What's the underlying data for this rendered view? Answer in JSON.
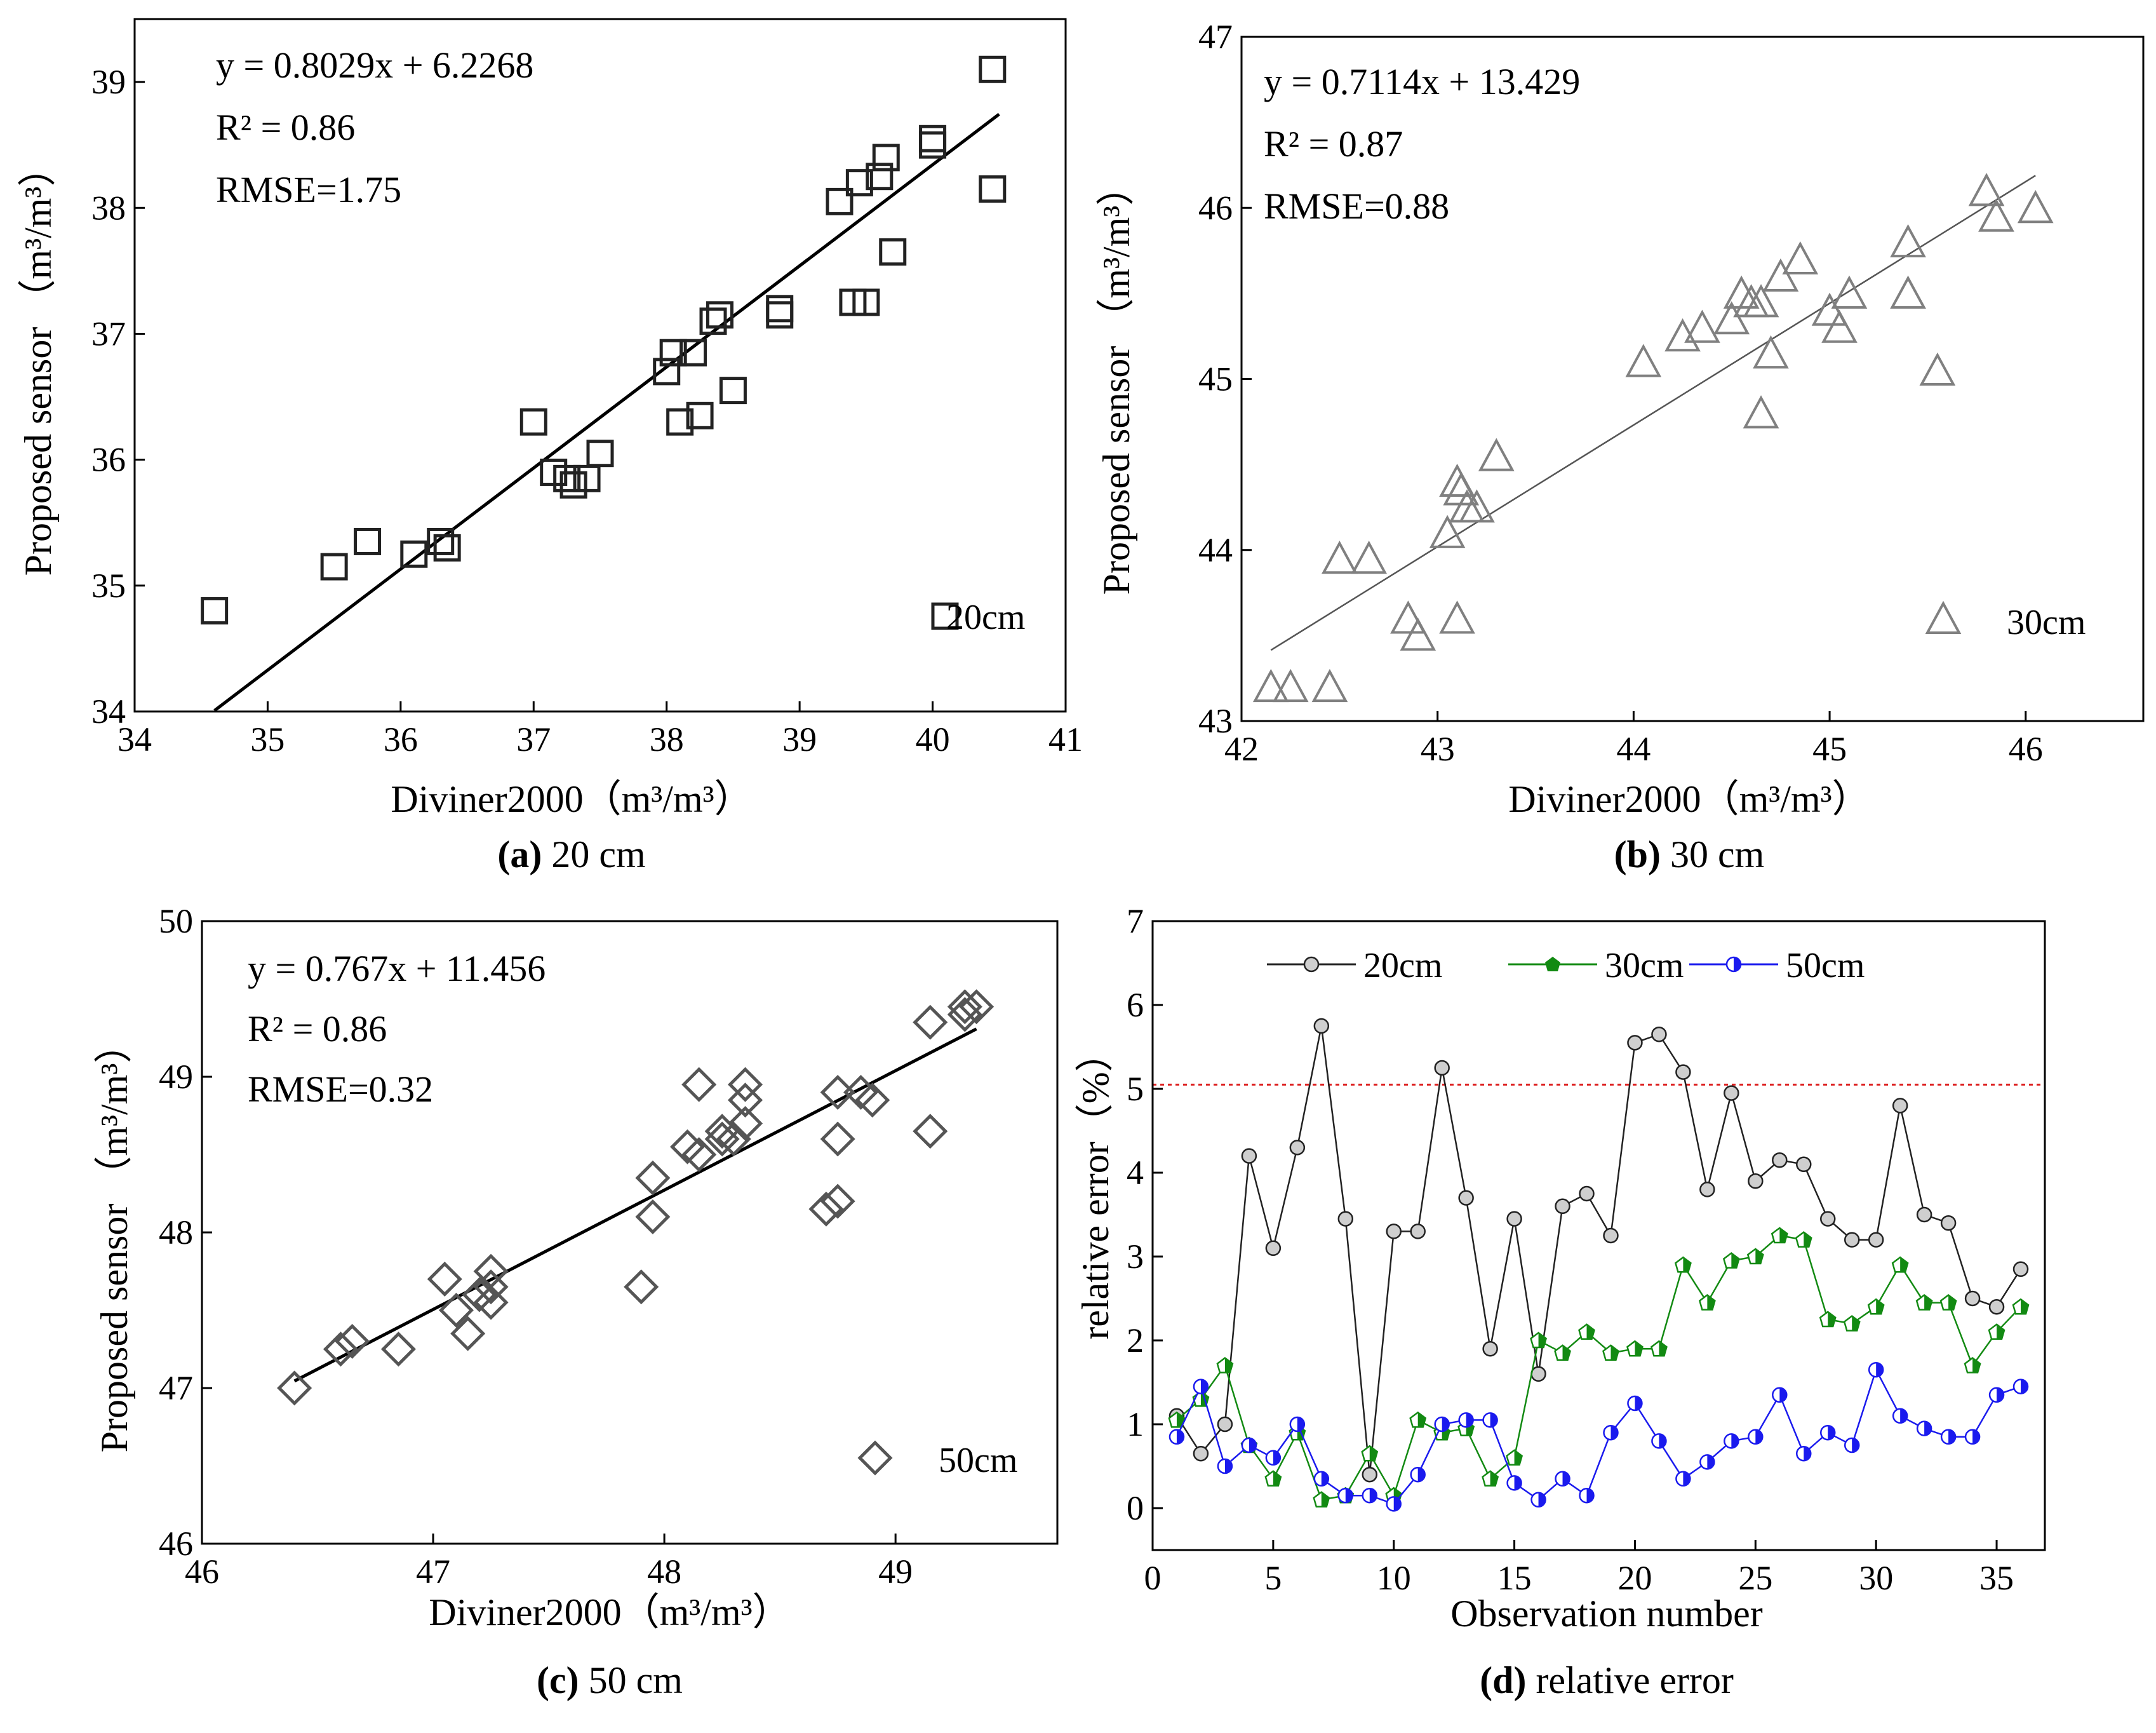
{
  "chart_data": [
    {
      "id": "a",
      "type": "scatter",
      "caption": {
        "letter": "(a)",
        "rest": " 20 cm"
      },
      "xlabel": "Diviner2000（m³/m³）",
      "ylabel": "Proposed sensor （m³/m³）",
      "xlim": [
        34,
        41
      ],
      "ylim": [
        34,
        39.5
      ],
      "xticks": [
        34,
        35,
        36,
        37,
        38,
        39,
        40,
        41
      ],
      "yticks": [
        34,
        35,
        36,
        37,
        38,
        39
      ],
      "marker": "square",
      "color": "#222222",
      "legend": "20cm",
      "legend_position": "bottom-right",
      "annotations": [
        "y = 0.8029x + 6.2268",
        "R² = 0.86",
        "RMSE=1.75"
      ],
      "fit": {
        "slope": 0.8029,
        "intercept": 6.2268,
        "xrange": [
          34.6,
          40.5
        ]
      },
      "x": [
        34.6,
        35.5,
        35.75,
        36.1,
        36.3,
        36.35,
        37.0,
        37.15,
        37.25,
        37.3,
        37.4,
        37.5,
        38.0,
        38.05,
        38.1,
        38.2,
        38.25,
        38.35,
        38.4,
        38.5,
        38.85,
        38.85,
        39.3,
        39.4,
        39.45,
        39.5,
        39.6,
        39.65,
        39.7,
        40.0,
        40.0,
        40.45,
        40.45
      ],
      "y": [
        34.8,
        35.15,
        35.35,
        35.25,
        35.35,
        35.3,
        36.3,
        35.9,
        35.85,
        35.8,
        35.85,
        36.05,
        36.7,
        36.85,
        36.3,
        36.85,
        36.35,
        37.1,
        37.15,
        36.55,
        37.2,
        37.15,
        38.05,
        37.25,
        38.2,
        37.25,
        38.25,
        38.4,
        37.65,
        38.5,
        38.55,
        39.1,
        38.15
      ]
    },
    {
      "id": "b",
      "type": "scatter",
      "caption": {
        "letter": "(b)",
        "rest": " 30 cm"
      },
      "xlabel": "Diviner2000（m³/m³）",
      "ylabel": "Proposed sensor （m³/m³）",
      "xlim": [
        42,
        46.6
      ],
      "ylim": [
        43,
        47
      ],
      "xticks": [
        42,
        43,
        44,
        45,
        46
      ],
      "yticks": [
        43,
        44,
        45,
        46,
        47
      ],
      "marker": "triangle",
      "color": "#808080",
      "legend": "30cm",
      "legend_position": "bottom-right",
      "annotations": [
        "y = 0.7114x + 13.429",
        "R² = 0.87",
        "RMSE=0.88"
      ],
      "fit": {
        "slope": 0.7114,
        "intercept": 13.429,
        "xrange": [
          42.15,
          46.05
        ]
      },
      "x": [
        42.15,
        42.25,
        42.45,
        42.5,
        42.65,
        42.85,
        42.9,
        43.05,
        43.1,
        43.12,
        43.15,
        43.2,
        43.3,
        44.05,
        44.25,
        44.35,
        44.5,
        44.55,
        44.6,
        44.65,
        44.7,
        44.75,
        44.85,
        45.0,
        45.05,
        45.1,
        45.4,
        45.4,
        45.55,
        45.8,
        45.85,
        46.05,
        43.1,
        44.65
      ],
      "y": [
        43.2,
        43.2,
        43.2,
        43.95,
        43.95,
        43.6,
        43.5,
        44.1,
        44.4,
        44.35,
        44.25,
        44.25,
        44.55,
        45.1,
        45.25,
        45.3,
        45.35,
        45.5,
        45.45,
        45.45,
        45.15,
        45.6,
        45.7,
        45.4,
        45.3,
        45.5,
        45.8,
        45.5,
        45.05,
        46.1,
        45.95,
        46.0,
        43.6,
        44.8
      ]
    },
    {
      "id": "c",
      "type": "scatter",
      "caption": {
        "letter": "(c)",
        "rest": " 50 cm"
      },
      "xlabel": "Diviner2000（m³/m³）",
      "ylabel": "Proposed sensor （m³/m³）",
      "xlim": [
        46,
        49.7
      ],
      "ylim": [
        46,
        50
      ],
      "xticks": [
        46,
        47,
        48,
        49
      ],
      "yticks": [
        46,
        47,
        48,
        49,
        50
      ],
      "marker": "diamond",
      "color": "#555555",
      "legend": "50cm",
      "legend_position": "bottom-right",
      "annotations": [
        "y = 0.767x + 11.456",
        "R² = 0.86",
        "RMSE=0.32"
      ],
      "fit": {
        "slope": 0.767,
        "intercept": 11.456,
        "xrange": [
          46.4,
          49.35
        ]
      },
      "x": [
        46.4,
        46.6,
        46.65,
        46.85,
        47.05,
        47.1,
        47.15,
        47.2,
        47.25,
        47.25,
        47.25,
        47.9,
        47.95,
        47.95,
        48.1,
        48.15,
        48.15,
        48.25,
        48.25,
        48.3,
        48.35,
        48.35,
        48.35,
        48.7,
        48.75,
        48.75,
        48.75,
        48.85,
        48.9,
        49.15,
        49.15,
        49.3,
        49.35,
        49.3
      ],
      "y": [
        47.0,
        47.25,
        47.3,
        47.25,
        47.7,
        47.5,
        47.35,
        47.6,
        47.55,
        47.65,
        47.75,
        47.65,
        48.1,
        48.35,
        48.55,
        48.5,
        48.95,
        48.6,
        48.65,
        48.6,
        48.7,
        48.85,
        48.95,
        48.15,
        48.2,
        48.6,
        48.9,
        48.9,
        48.85,
        48.65,
        49.35,
        49.45,
        49.45,
        49.4
      ]
    },
    {
      "id": "d",
      "type": "line",
      "caption": {
        "letter": "(d)",
        "rest": " relative error"
      },
      "xlabel": "Observation number",
      "ylabel": "relative error（%）",
      "xlim": [
        0,
        37
      ],
      "ylim": [
        -0.5,
        7
      ],
      "xticks": [
        0,
        5,
        10,
        15,
        20,
        25,
        30,
        35
      ],
      "yticks": [
        0,
        1,
        2,
        3,
        4,
        5,
        6,
        7
      ],
      "threshold": {
        "value": 5.05,
        "color": "#dd2222"
      },
      "legend_position": "top-left",
      "x": [
        1,
        2,
        3,
        4,
        5,
        6,
        7,
        8,
        9,
        10,
        11,
        12,
        13,
        14,
        15,
        16,
        17,
        18,
        19,
        20,
        21,
        22,
        23,
        24,
        25,
        26,
        27,
        28,
        29,
        30,
        31,
        32,
        33,
        34,
        35,
        36
      ],
      "series": [
        {
          "name": "20cm",
          "color": "#222222",
          "marker_fill": "#bbbbbb",
          "values": [
            1.1,
            0.65,
            1.0,
            4.2,
            3.1,
            4.3,
            5.75,
            3.45,
            0.4,
            3.3,
            3.3,
            5.25,
            3.7,
            1.9,
            3.45,
            1.6,
            3.6,
            3.75,
            3.25,
            5.55,
            5.65,
            5.2,
            3.8,
            4.95,
            3.9,
            4.15,
            4.1,
            3.45,
            3.2,
            3.2,
            4.8,
            3.5,
            3.4,
            2.5,
            2.4,
            2.85
          ]
        },
        {
          "name": "30cm",
          "color": "#128a12",
          "marker_fill": "#128a12",
          "values": [
            1.05,
            1.3,
            1.7,
            0.75,
            0.35,
            0.9,
            0.1,
            0.15,
            0.65,
            0.15,
            1.05,
            0.9,
            0.95,
            0.35,
            0.6,
            2.0,
            1.85,
            2.1,
            1.85,
            1.9,
            1.9,
            2.9,
            2.45,
            2.95,
            3.0,
            3.25,
            3.2,
            2.25,
            2.2,
            2.4,
            2.9,
            2.45,
            2.45,
            1.7,
            2.1,
            2.4
          ]
        },
        {
          "name": "50cm",
          "color": "#1a1aee",
          "marker_fill": "#1a1aee",
          "values": [
            0.85,
            1.45,
            0.5,
            0.75,
            0.6,
            1.0,
            0.35,
            0.15,
            0.15,
            0.05,
            0.4,
            1.0,
            1.05,
            1.05,
            0.3,
            0.1,
            0.35,
            0.15,
            0.9,
            1.25,
            0.8,
            0.35,
            0.55,
            0.8,
            0.85,
            1.35,
            0.65,
            0.9,
            0.75,
            1.65,
            1.1,
            0.95,
            0.85,
            0.85,
            1.35,
            1.45
          ]
        }
      ]
    }
  ]
}
